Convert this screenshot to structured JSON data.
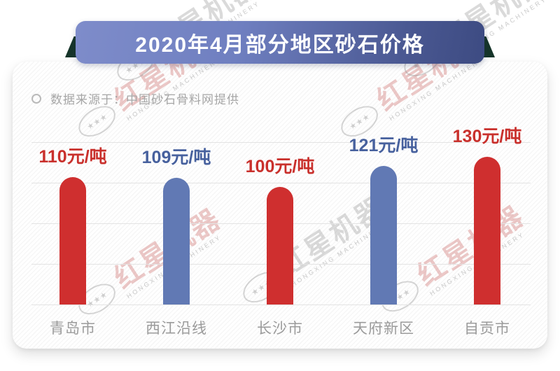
{
  "banner": {
    "title": "2020年4月部分地区砂石价格"
  },
  "source": {
    "text": "数据来源于：中国砂石骨料网提供"
  },
  "watermark": {
    "cn": "红星机器",
    "en": "HONGXING MACHINERY"
  },
  "colors": {
    "bar_red": "#cf2f2f",
    "bar_blue": "#6179b4",
    "label_red": "#c9302c",
    "label_blue": "#47619e",
    "banner_gradient_left": "#7e8cca",
    "banner_gradient_right": "#3d4b82",
    "ribbon_fold_green": "#16352a",
    "grid_line": "#e3e3e3",
    "category_label": "#9b9b9b",
    "source_text": "#a6a6a6"
  },
  "chart_data": {
    "type": "bar",
    "title": "2020年4月部分地区砂石价格",
    "source": "数据来源于：中国砂石骨料网提供",
    "categories": [
      "青岛市",
      "西江沿线",
      "长沙市",
      "天府新区",
      "自贡市"
    ],
    "values": [
      110,
      109,
      100,
      121,
      130
    ],
    "unit": "元/吨",
    "value_labels": [
      "110元/吨",
      "109元/吨",
      "100元/吨",
      "121元/吨",
      "130元/吨"
    ],
    "bar_colors": [
      "#cf2f2f",
      "#6179b4",
      "#cf2f2f",
      "#6179b4",
      "#cf2f2f"
    ],
    "label_colors": [
      "#c9302c",
      "#47619e",
      "#c9302c",
      "#47619e",
      "#c9302c"
    ],
    "ylim": [
      0,
      130
    ],
    "grid": true,
    "legend": false,
    "xlabel": "",
    "ylabel": ""
  }
}
